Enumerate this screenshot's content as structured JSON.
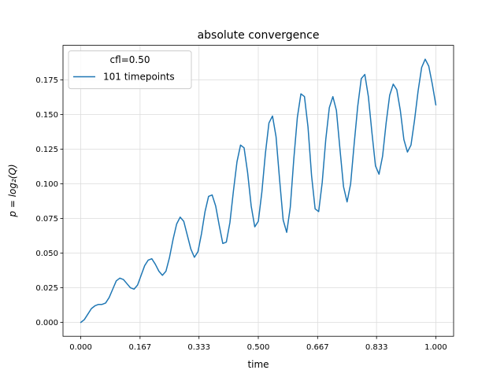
{
  "chart_data": {
    "type": "line",
    "title": "absolute convergence",
    "xlabel": "time",
    "ylabel": "p = log₂(Q)",
    "xlim": [
      -0.05,
      1.05
    ],
    "ylim": [
      -0.01,
      0.2
    ],
    "xticks": [
      0.0,
      0.167,
      0.333,
      0.5,
      0.667,
      0.833,
      1.0
    ],
    "xtick_labels": [
      "0.000",
      "0.167",
      "0.333",
      "0.500",
      "0.667",
      "0.833",
      "1.000"
    ],
    "yticks": [
      0.0,
      0.025,
      0.05,
      0.075,
      0.1,
      0.125,
      0.15,
      0.175
    ],
    "ytick_labels": [
      "0.000",
      "0.025",
      "0.050",
      "0.075",
      "0.100",
      "0.125",
      "0.150",
      "0.175"
    ],
    "grid": true,
    "legend": {
      "title": "cfl=0.50",
      "position": "top-left"
    },
    "series": [
      {
        "name": "101 timepoints",
        "color": "#1f77b4",
        "x": [
          0.0,
          0.01,
          0.02,
          0.03,
          0.04,
          0.05,
          0.06,
          0.07,
          0.08,
          0.09,
          0.1,
          0.11,
          0.12,
          0.13,
          0.14,
          0.15,
          0.16,
          0.17,
          0.18,
          0.19,
          0.2,
          0.21,
          0.22,
          0.23,
          0.24,
          0.25,
          0.26,
          0.27,
          0.28,
          0.29,
          0.3,
          0.31,
          0.32,
          0.33,
          0.34,
          0.35,
          0.36,
          0.37,
          0.38,
          0.39,
          0.4,
          0.41,
          0.42,
          0.43,
          0.44,
          0.45,
          0.46,
          0.47,
          0.48,
          0.49,
          0.5,
          0.51,
          0.52,
          0.53,
          0.54,
          0.55,
          0.56,
          0.57,
          0.58,
          0.59,
          0.6,
          0.61,
          0.62,
          0.63,
          0.64,
          0.65,
          0.66,
          0.67,
          0.68,
          0.69,
          0.7,
          0.71,
          0.72,
          0.73,
          0.74,
          0.75,
          0.76,
          0.77,
          0.78,
          0.79,
          0.8,
          0.81,
          0.82,
          0.83,
          0.84,
          0.85,
          0.86,
          0.87,
          0.88,
          0.89,
          0.9,
          0.91,
          0.92,
          0.93,
          0.94,
          0.95,
          0.96,
          0.97,
          0.98,
          0.99,
          1.0
        ],
        "y": [
          0.0,
          0.002,
          0.006,
          0.01,
          0.012,
          0.013,
          0.013,
          0.014,
          0.018,
          0.024,
          0.03,
          0.032,
          0.031,
          0.028,
          0.025,
          0.024,
          0.027,
          0.034,
          0.041,
          0.045,
          0.046,
          0.042,
          0.037,
          0.034,
          0.037,
          0.047,
          0.06,
          0.071,
          0.076,
          0.073,
          0.063,
          0.053,
          0.047,
          0.051,
          0.064,
          0.08,
          0.091,
          0.092,
          0.084,
          0.07,
          0.057,
          0.058,
          0.072,
          0.095,
          0.116,
          0.128,
          0.126,
          0.108,
          0.084,
          0.069,
          0.073,
          0.094,
          0.122,
          0.144,
          0.149,
          0.134,
          0.103,
          0.074,
          0.065,
          0.083,
          0.118,
          0.148,
          0.165,
          0.163,
          0.141,
          0.106,
          0.082,
          0.08,
          0.101,
          0.132,
          0.155,
          0.163,
          0.153,
          0.125,
          0.098,
          0.087,
          0.1,
          0.129,
          0.156,
          0.176,
          0.179,
          0.163,
          0.137,
          0.113,
          0.107,
          0.12,
          0.144,
          0.164,
          0.172,
          0.168,
          0.153,
          0.132,
          0.123,
          0.128,
          0.146,
          0.167,
          0.184,
          0.19,
          0.185,
          0.172,
          0.157
        ]
      }
    ]
  }
}
